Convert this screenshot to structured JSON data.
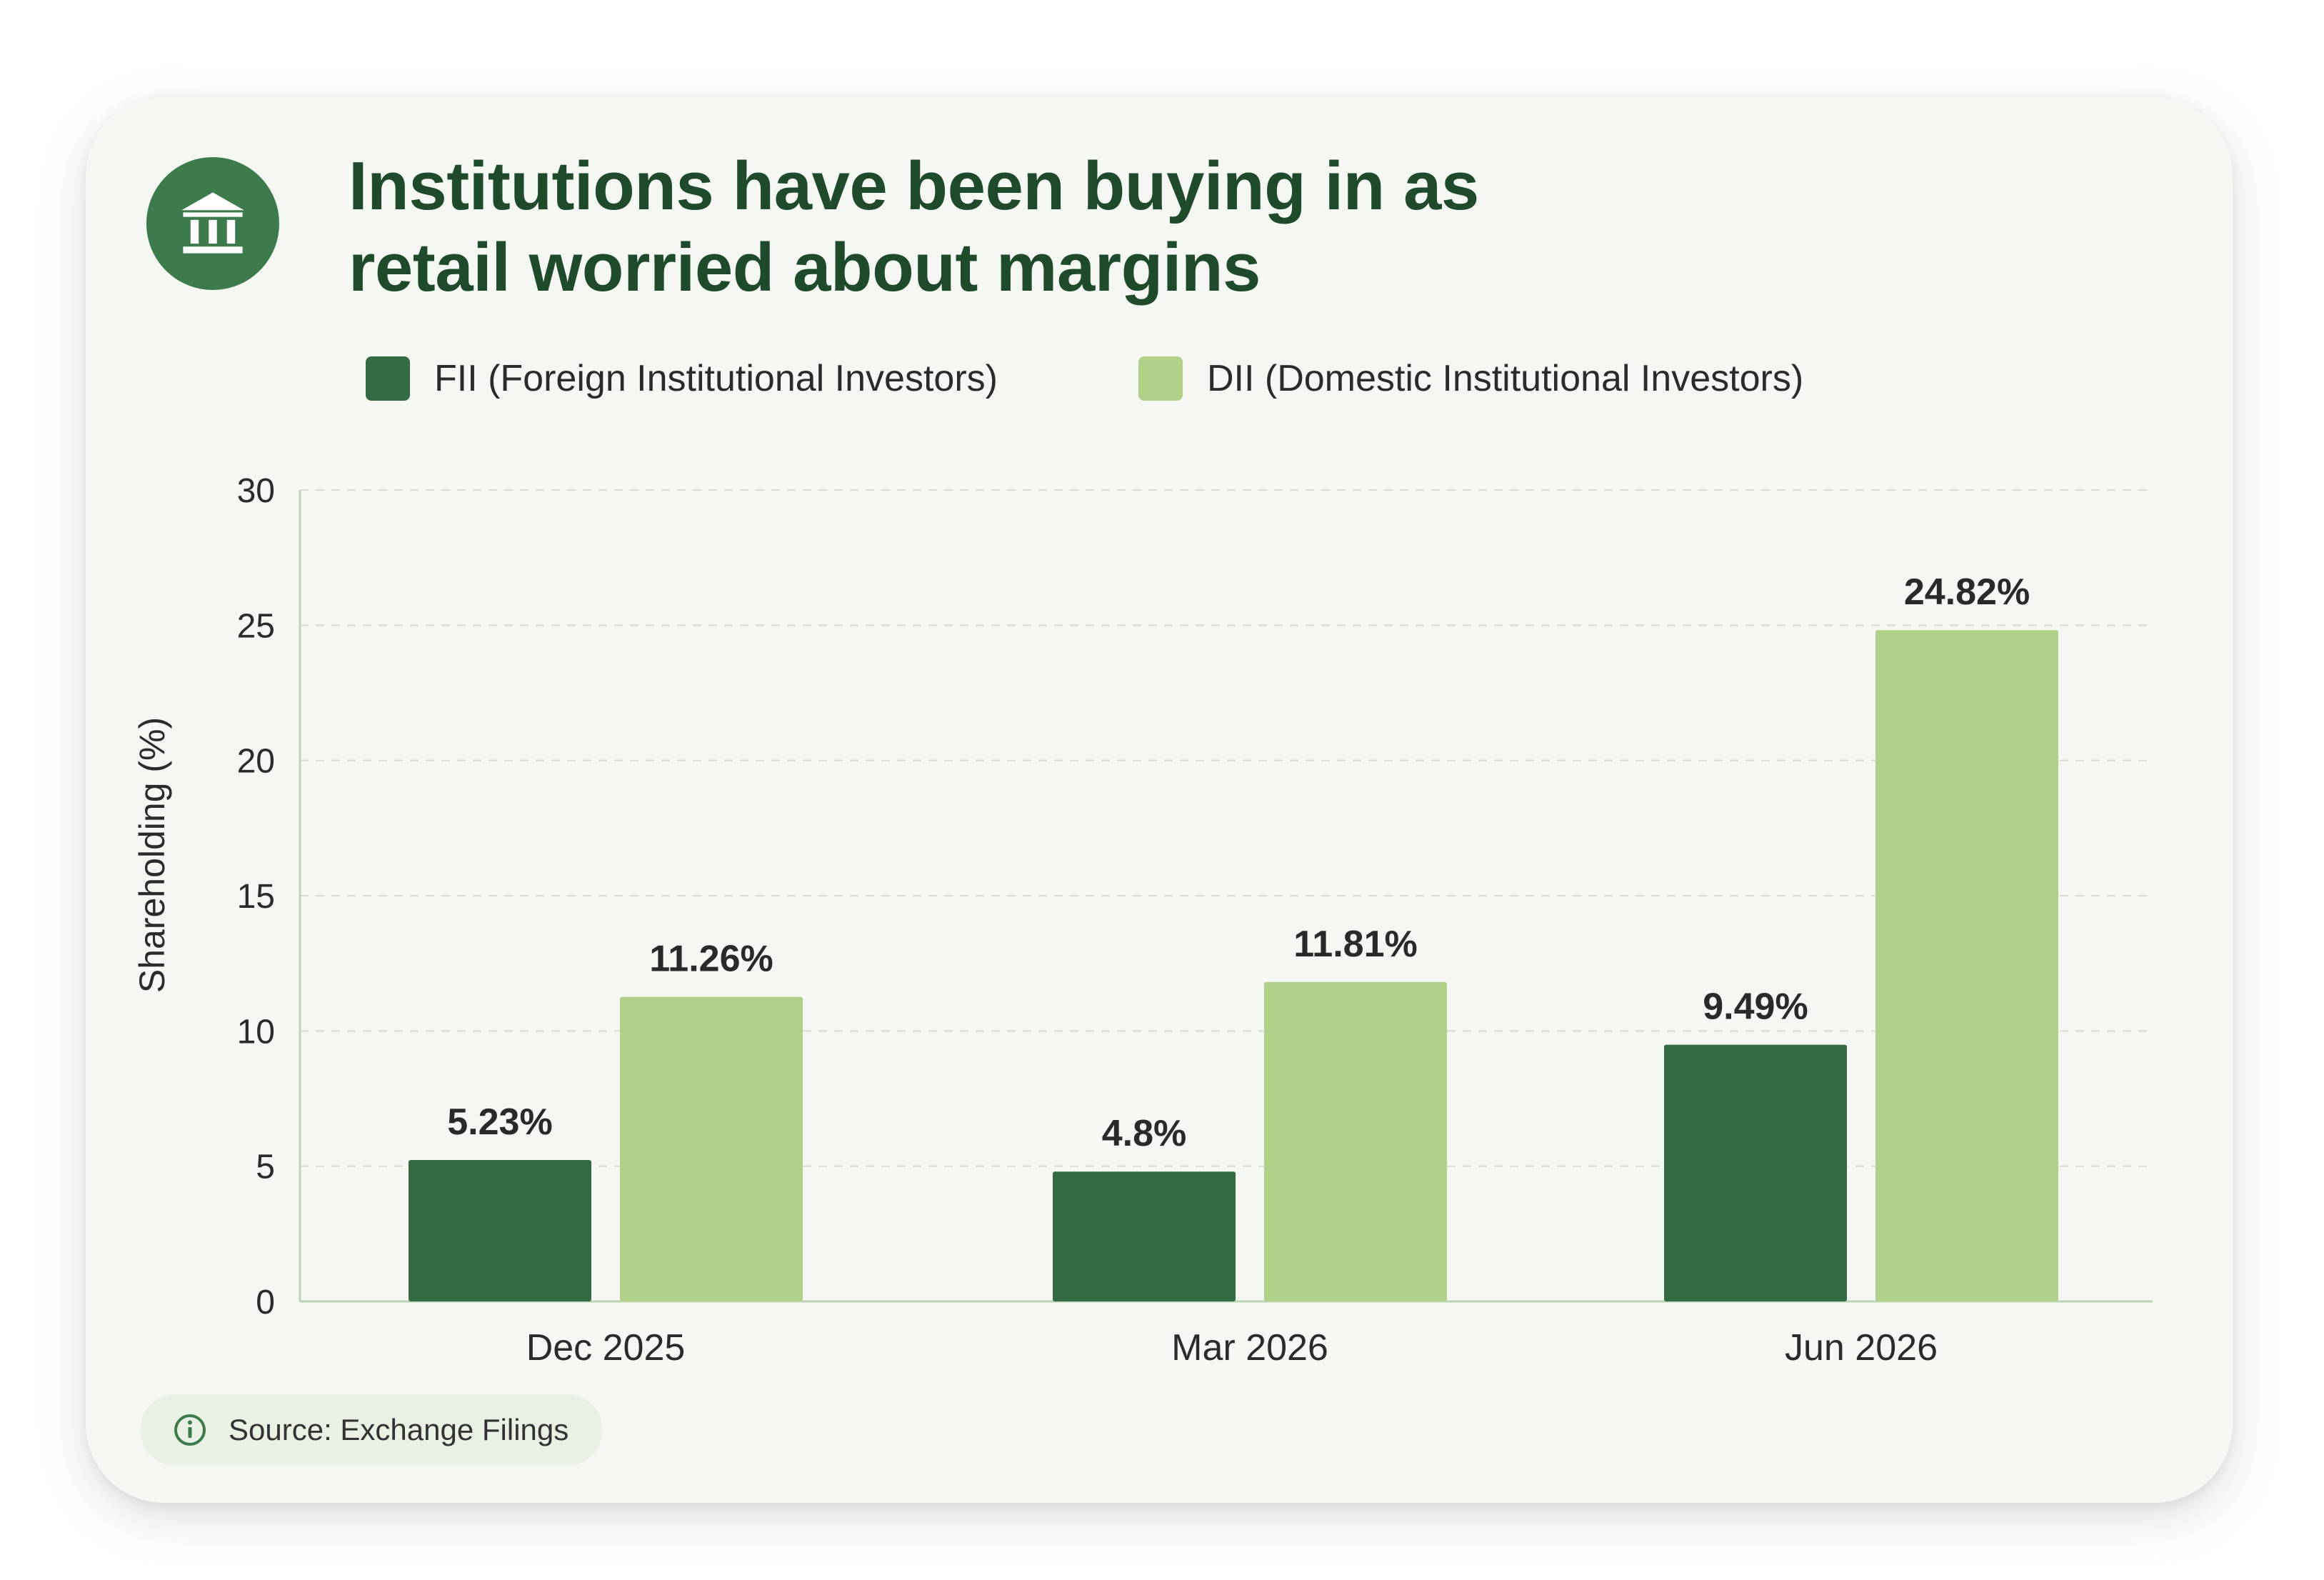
{
  "header": {
    "icon": "bank-building-icon",
    "title_line1": "Institutions have been buying in as",
    "title_line2": "retail worried about margins"
  },
  "footer": {
    "icon": "info-icon",
    "source": "Source: Exchange Filings"
  },
  "colors": {
    "fii": "#356b43",
    "dii": "#b1d18a",
    "title": "#1f4a2c",
    "badge": "#3d7a4c"
  },
  "chart_data": {
    "type": "bar",
    "categories": [
      "Dec 2025",
      "Mar 2026",
      "Jun 2026"
    ],
    "series": [
      {
        "name": "FII (Foreign Institutional Investors)",
        "values": [
          5.23,
          4.8,
          9.49
        ],
        "labels": [
          "5.23%",
          "4.8%",
          "9.49%"
        ]
      },
      {
        "name": "DII (Domestic Institutional Investors)",
        "values": [
          11.26,
          11.81,
          24.82
        ],
        "labels": [
          "11.26%",
          "11.81%",
          "24.82%"
        ]
      }
    ],
    "ylabel": "Shareholding (%)",
    "ylim": [
      0,
      30
    ],
    "yticks": [
      0,
      5,
      10,
      15,
      20,
      25,
      30
    ],
    "grid": true,
    "legend_position": "top"
  }
}
